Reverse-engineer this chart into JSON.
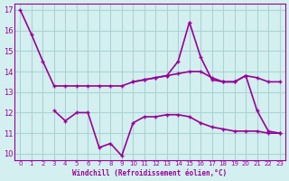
{
  "xlabel": "Windchill (Refroidissement éolien,°C)",
  "background_color": "#d4efef",
  "grid_color": "#aad4d4",
  "line_color": "#990099",
  "xlim": [
    -0.5,
    23.5
  ],
  "ylim": [
    9.7,
    17.3
  ],
  "yticks": [
    10,
    11,
    12,
    13,
    14,
    15,
    16,
    17
  ],
  "xticks": [
    0,
    1,
    2,
    3,
    4,
    5,
    6,
    7,
    8,
    9,
    10,
    11,
    12,
    13,
    14,
    15,
    16,
    17,
    18,
    19,
    20,
    21,
    22,
    23
  ],
  "line1_x": [
    0,
    1,
    2,
    3,
    4,
    5,
    6,
    7,
    8,
    9,
    10,
    11,
    12,
    13,
    14,
    15,
    16,
    17,
    18,
    19,
    20,
    21,
    22,
    23
  ],
  "line1_y": [
    17.0,
    15.8,
    14.5,
    13.3,
    13.3,
    13.3,
    13.3,
    13.3,
    13.3,
    13.3,
    13.5,
    13.6,
    13.7,
    13.8,
    13.9,
    14.0,
    14.0,
    13.7,
    13.5,
    13.5,
    13.8,
    13.7,
    13.5,
    13.5
  ],
  "line2_x": [
    10,
    11,
    12,
    13,
    14,
    15,
    16,
    17,
    18,
    19,
    20,
    21,
    22,
    23
  ],
  "line2_y": [
    13.5,
    13.6,
    13.7,
    13.8,
    14.5,
    16.4,
    14.7,
    13.6,
    13.5,
    13.5,
    13.8,
    12.1,
    11.1,
    11.0
  ],
  "line3_x": [
    3,
    4,
    5,
    6,
    7,
    8,
    9,
    10,
    11,
    12,
    13,
    14,
    15,
    16,
    17,
    18,
    19,
    20,
    21,
    22,
    23
  ],
  "line3_y": [
    12.1,
    11.6,
    12.0,
    12.0,
    10.3,
    10.5,
    9.9,
    11.5,
    11.8,
    11.8,
    11.9,
    11.9,
    11.8,
    11.5,
    11.3,
    11.2,
    11.1,
    11.1,
    11.1,
    11.0,
    11.0
  ],
  "marker_size": 3,
  "linewidth": 1.2
}
